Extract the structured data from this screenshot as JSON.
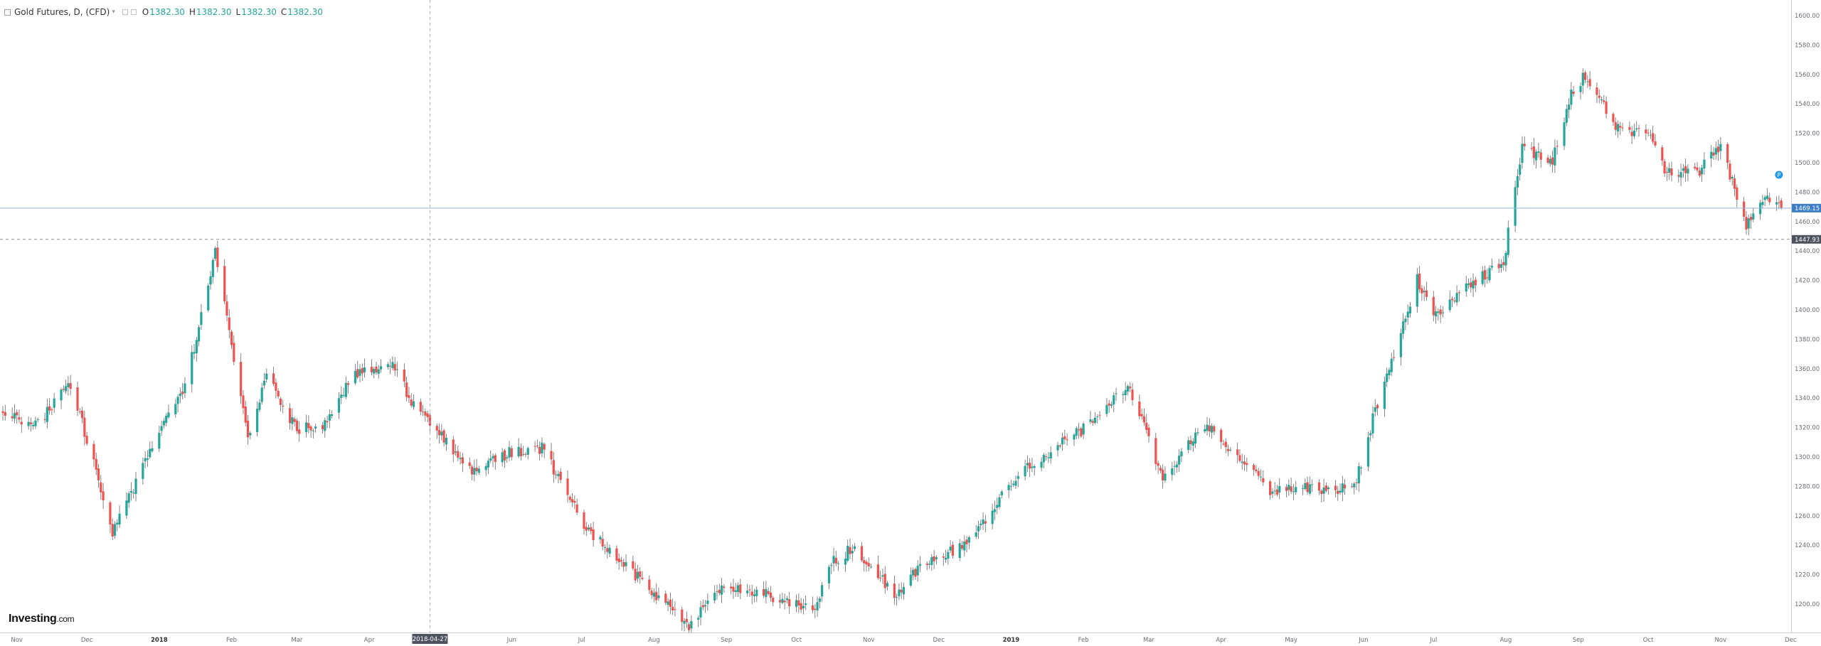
{
  "header": {
    "title": "Gold Futures, D, (CFD)",
    "caret": "▾",
    "ohlc": [
      {
        "label": "O",
        "value": "1382.30"
      },
      {
        "label": "H",
        "value": "1382.30"
      },
      {
        "label": "L",
        "value": "1382.30"
      },
      {
        "label": "C",
        "value": "1382.30"
      }
    ]
  },
  "logo": {
    "name": "Investing",
    "suffix": ".com"
  },
  "colors": {
    "up": "#26a69a",
    "down": "#ef5350",
    "current_price_line": "#90b4d4",
    "current_price_bg": "#3d7fc7",
    "crosshair_bg": "#4c525e"
  },
  "chart_data": {
    "type": "candlestick",
    "title": "Gold Futures, D, (CFD)",
    "ylim": [
      1180,
      1620
    ],
    "y_ticks": [
      "1200.00",
      "1220.00",
      "1240.00",
      "1260.00",
      "1280.00",
      "1300.00",
      "1320.00",
      "1340.00",
      "1360.00",
      "1380.00",
      "1400.00",
      "1420.00",
      "1440.00",
      "1460.00",
      "1480.00",
      "1500.00",
      "1520.00",
      "1540.00",
      "1560.00",
      "1580.00",
      "1600.00"
    ],
    "x_range": [
      "2017-10-26",
      "2019-11-30"
    ],
    "x_ticks": [
      {
        "date": "2017-11-01",
        "label": "Nov"
      },
      {
        "date": "2017-12-01",
        "label": "Dec"
      },
      {
        "date": "2018-01-01",
        "label": "2018"
      },
      {
        "date": "2018-02-01",
        "label": "Feb"
      },
      {
        "date": "2018-03-01",
        "label": "Mar"
      },
      {
        "date": "2018-04-01",
        "label": "Apr"
      },
      {
        "date": "2018-06-01",
        "label": "Jun"
      },
      {
        "date": "2018-07-01",
        "label": "Jul"
      },
      {
        "date": "2018-08-01",
        "label": "Aug"
      },
      {
        "date": "2018-09-01",
        "label": "Sep"
      },
      {
        "date": "2018-10-01",
        "label": "Oct"
      },
      {
        "date": "2018-11-01",
        "label": "Nov"
      },
      {
        "date": "2018-12-01",
        "label": "Dec"
      },
      {
        "date": "2019-01-01",
        "label": "2019"
      },
      {
        "date": "2019-02-01",
        "label": "Feb"
      },
      {
        "date": "2019-03-01",
        "label": "Mar"
      },
      {
        "date": "2019-04-01",
        "label": "Apr"
      },
      {
        "date": "2019-05-01",
        "label": "May"
      },
      {
        "date": "2019-06-01",
        "label": "Jun"
      },
      {
        "date": "2019-07-01",
        "label": "Jul"
      },
      {
        "date": "2019-08-01",
        "label": "Aug"
      },
      {
        "date": "2019-09-01",
        "label": "Sep"
      },
      {
        "date": "2019-10-01",
        "label": "Oct"
      },
      {
        "date": "2019-11-01",
        "label": "Nov"
      },
      {
        "date": "2019-12-01",
        "label": "Dec"
      }
    ],
    "crosshair": {
      "date": "2018-04-27",
      "label": "2018-04-27",
      "price": 1447.93,
      "price_label": "1447.93"
    },
    "current_price": {
      "value": 1469.15,
      "label": "1469.15"
    },
    "marker": {
      "date": "2019-11-26",
      "price": 1486,
      "label": "P"
    },
    "anchors": [
      [
        "2017-10-26",
        1331
      ],
      [
        "2017-11-08",
        1319
      ],
      [
        "2017-11-24",
        1350
      ],
      [
        "2017-12-05",
        1290
      ],
      [
        "2017-12-12",
        1247
      ],
      [
        "2017-12-28",
        1305
      ],
      [
        "2018-01-12",
        1347
      ],
      [
        "2018-01-25",
        1438
      ],
      [
        "2018-02-08",
        1313
      ],
      [
        "2018-02-16",
        1355
      ],
      [
        "2018-03-01",
        1318
      ],
      [
        "2018-03-12",
        1322
      ],
      [
        "2018-03-26",
        1357
      ],
      [
        "2018-04-11",
        1362
      ],
      [
        "2018-04-20",
        1336
      ],
      [
        "2018-05-15",
        1290
      ],
      [
        "2018-05-31",
        1303
      ],
      [
        "2018-06-14",
        1306
      ],
      [
        "2018-07-03",
        1252
      ],
      [
        "2018-07-19",
        1227
      ],
      [
        "2018-08-16",
        1185
      ],
      [
        "2018-08-28",
        1211
      ],
      [
        "2018-09-13",
        1209
      ],
      [
        "2018-10-09",
        1196
      ],
      [
        "2018-10-15",
        1227
      ],
      [
        "2018-10-26",
        1239
      ],
      [
        "2018-11-13",
        1205
      ],
      [
        "2018-11-23",
        1226
      ],
      [
        "2018-12-14",
        1242
      ],
      [
        "2019-01-04",
        1290
      ],
      [
        "2019-02-01",
        1319
      ],
      [
        "2019-02-20",
        1349
      ],
      [
        "2019-03-07",
        1286
      ],
      [
        "2019-03-25",
        1322
      ],
      [
        "2019-04-12",
        1294
      ],
      [
        "2019-04-23",
        1276
      ],
      [
        "2019-05-03",
        1281
      ],
      [
        "2019-05-20",
        1276
      ],
      [
        "2019-05-29",
        1284
      ],
      [
        "2019-06-06",
        1332
      ],
      [
        "2019-06-24",
        1421
      ],
      [
        "2019-07-01",
        1397
      ],
      [
        "2019-07-16",
        1416
      ],
      [
        "2019-07-31",
        1433
      ],
      [
        "2019-08-08",
        1509
      ],
      [
        "2019-08-21",
        1502
      ],
      [
        "2019-08-29",
        1546
      ],
      [
        "2019-09-04",
        1560
      ],
      [
        "2019-09-18",
        1523
      ],
      [
        "2019-10-01",
        1519
      ],
      [
        "2019-10-08",
        1495
      ],
      [
        "2019-10-22",
        1492
      ],
      [
        "2019-11-01",
        1513
      ],
      [
        "2019-11-12",
        1456
      ],
      [
        "2019-11-20",
        1475
      ],
      [
        "2019-11-27",
        1469
      ]
    ],
    "grid": false,
    "legend": "none"
  }
}
